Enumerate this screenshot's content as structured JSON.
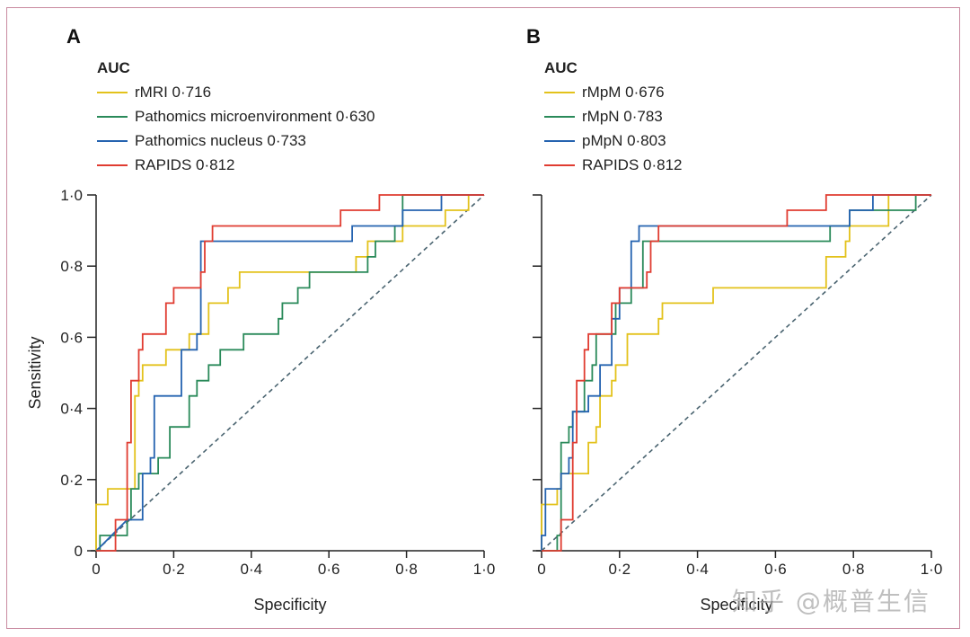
{
  "watermark": "知乎 @概普生信",
  "chart_data": [
    {
      "type": "line",
      "panel": "A",
      "title": "",
      "legend_title": "AUC",
      "legend_placement": "top-left",
      "xlabel": "Specificity",
      "ylabel": "Sensitivity",
      "xlim": [
        0,
        1
      ],
      "ylim": [
        0,
        1
      ],
      "xticks": [
        "0",
        "0·2",
        "0·4",
        "0·6",
        "0·8",
        "1·0"
      ],
      "yticks": [
        "0",
        "0·2",
        "0·4",
        "0·6",
        "0·8",
        "1·0"
      ],
      "grid": false,
      "reference_line": {
        "name": "chance",
        "style": "dashed",
        "color": "#4a6470",
        "points": [
          [
            0,
            0
          ],
          [
            1,
            1
          ]
        ]
      },
      "series": [
        {
          "name": "rMRI",
          "auc": "0·716",
          "label": "rMRI 0·716",
          "color": "#e3c21b",
          "points": [
            [
              0,
              0
            ],
            [
              0,
              0.13
            ],
            [
              0.03,
              0.13
            ],
            [
              0.03,
              0.174
            ],
            [
              0.1,
              0.174
            ],
            [
              0.1,
              0.435
            ],
            [
              0.11,
              0.435
            ],
            [
              0.11,
              0.478
            ],
            [
              0.12,
              0.478
            ],
            [
              0.12,
              0.522
            ],
            [
              0.18,
              0.522
            ],
            [
              0.18,
              0.565
            ],
            [
              0.24,
              0.565
            ],
            [
              0.24,
              0.609
            ],
            [
              0.29,
              0.609
            ],
            [
              0.29,
              0.696
            ],
            [
              0.34,
              0.696
            ],
            [
              0.34,
              0.739
            ],
            [
              0.37,
              0.739
            ],
            [
              0.37,
              0.783
            ],
            [
              0.67,
              0.783
            ],
            [
              0.67,
              0.826
            ],
            [
              0.7,
              0.826
            ],
            [
              0.7,
              0.87
            ],
            [
              0.79,
              0.87
            ],
            [
              0.79,
              0.913
            ],
            [
              0.9,
              0.913
            ],
            [
              0.9,
              0.957
            ],
            [
              0.96,
              0.957
            ],
            [
              0.96,
              1
            ],
            [
              1,
              1
            ]
          ]
        },
        {
          "name": "Pathomics microenvironment",
          "auc": "0·630",
          "label": "Pathomics microenvironment 0·630",
          "color": "#2a8a5a",
          "points": [
            [
              0,
              0
            ],
            [
              0.01,
              0
            ],
            [
              0.01,
              0.043
            ],
            [
              0.08,
              0.043
            ],
            [
              0.08,
              0.087
            ],
            [
              0.09,
              0.087
            ],
            [
              0.09,
              0.174
            ],
            [
              0.11,
              0.174
            ],
            [
              0.11,
              0.217
            ],
            [
              0.16,
              0.217
            ],
            [
              0.16,
              0.261
            ],
            [
              0.19,
              0.261
            ],
            [
              0.19,
              0.348
            ],
            [
              0.24,
              0.348
            ],
            [
              0.24,
              0.435
            ],
            [
              0.26,
              0.435
            ],
            [
              0.26,
              0.478
            ],
            [
              0.29,
              0.478
            ],
            [
              0.29,
              0.522
            ],
            [
              0.32,
              0.522
            ],
            [
              0.32,
              0.565
            ],
            [
              0.38,
              0.565
            ],
            [
              0.38,
              0.609
            ],
            [
              0.47,
              0.609
            ],
            [
              0.47,
              0.652
            ],
            [
              0.48,
              0.652
            ],
            [
              0.48,
              0.696
            ],
            [
              0.52,
              0.696
            ],
            [
              0.52,
              0.739
            ],
            [
              0.55,
              0.739
            ],
            [
              0.55,
              0.783
            ],
            [
              0.7,
              0.783
            ],
            [
              0.7,
              0.826
            ],
            [
              0.72,
              0.826
            ],
            [
              0.72,
              0.87
            ],
            [
              0.77,
              0.87
            ],
            [
              0.77,
              0.913
            ],
            [
              0.79,
              0.913
            ],
            [
              0.79,
              1
            ],
            [
              1,
              1
            ]
          ]
        },
        {
          "name": "Pathomics nucleus",
          "auc": "0·733",
          "label": "Pathomics nucleus 0·733",
          "color": "#2563b0",
          "points": [
            [
              0,
              0
            ],
            [
              0.01,
              0.01
            ],
            [
              0.08,
              0.087
            ],
            [
              0.12,
              0.087
            ],
            [
              0.12,
              0.217
            ],
            [
              0.14,
              0.217
            ],
            [
              0.14,
              0.261
            ],
            [
              0.15,
              0.261
            ],
            [
              0.15,
              0.435
            ],
            [
              0.22,
              0.435
            ],
            [
              0.22,
              0.565
            ],
            [
              0.26,
              0.565
            ],
            [
              0.26,
              0.609
            ],
            [
              0.27,
              0.609
            ],
            [
              0.27,
              0.87
            ],
            [
              0.66,
              0.87
            ],
            [
              0.66,
              0.913
            ],
            [
              0.79,
              0.913
            ],
            [
              0.79,
              0.957
            ],
            [
              0.89,
              0.957
            ],
            [
              0.89,
              1
            ],
            [
              1,
              1
            ]
          ]
        },
        {
          "name": "RAPIDS",
          "auc": "0·812",
          "label": "RAPIDS 0·812",
          "color": "#e03c31",
          "points": [
            [
              0,
              0
            ],
            [
              0.05,
              0
            ],
            [
              0.05,
              0.087
            ],
            [
              0.08,
              0.087
            ],
            [
              0.08,
              0.304
            ],
            [
              0.09,
              0.304
            ],
            [
              0.09,
              0.478
            ],
            [
              0.11,
              0.478
            ],
            [
              0.11,
              0.565
            ],
            [
              0.12,
              0.565
            ],
            [
              0.12,
              0.609
            ],
            [
              0.18,
              0.609
            ],
            [
              0.18,
              0.696
            ],
            [
              0.2,
              0.696
            ],
            [
              0.2,
              0.739
            ],
            [
              0.27,
              0.739
            ],
            [
              0.27,
              0.783
            ],
            [
              0.28,
              0.783
            ],
            [
              0.28,
              0.87
            ],
            [
              0.3,
              0.87
            ],
            [
              0.3,
              0.913
            ],
            [
              0.63,
              0.913
            ],
            [
              0.63,
              0.957
            ],
            [
              0.73,
              0.957
            ],
            [
              0.73,
              1
            ],
            [
              1,
              1
            ]
          ]
        }
      ]
    },
    {
      "type": "line",
      "panel": "B",
      "title": "",
      "legend_title": "AUC",
      "legend_placement": "top-left",
      "xlabel": "Specificity",
      "ylabel": "",
      "xlim": [
        0,
        1
      ],
      "ylim": [
        0,
        1
      ],
      "xticks": [
        "0",
        "0·2",
        "0·4",
        "0·6",
        "0·8",
        "1·0"
      ],
      "yticks": [],
      "grid": false,
      "reference_line": {
        "name": "chance",
        "style": "dashed",
        "color": "#4a6470",
        "points": [
          [
            0,
            0
          ],
          [
            1,
            1
          ]
        ]
      },
      "series": [
        {
          "name": "rMpM",
          "auc": "0·676",
          "label": "rMpM 0·676",
          "color": "#e3c21b",
          "points": [
            [
              0,
              0
            ],
            [
              0,
              0.13
            ],
            [
              0.04,
              0.13
            ],
            [
              0.04,
              0.174
            ],
            [
              0.05,
              0.174
            ],
            [
              0.05,
              0.217
            ],
            [
              0.12,
              0.217
            ],
            [
              0.12,
              0.304
            ],
            [
              0.14,
              0.304
            ],
            [
              0.14,
              0.348
            ],
            [
              0.15,
              0.348
            ],
            [
              0.15,
              0.435
            ],
            [
              0.18,
              0.435
            ],
            [
              0.18,
              0.478
            ],
            [
              0.19,
              0.478
            ],
            [
              0.19,
              0.522
            ],
            [
              0.22,
              0.522
            ],
            [
              0.22,
              0.609
            ],
            [
              0.3,
              0.609
            ],
            [
              0.3,
              0.652
            ],
            [
              0.31,
              0.652
            ],
            [
              0.31,
              0.696
            ],
            [
              0.44,
              0.696
            ],
            [
              0.44,
              0.739
            ],
            [
              0.73,
              0.739
            ],
            [
              0.73,
              0.826
            ],
            [
              0.78,
              0.826
            ],
            [
              0.78,
              0.87
            ],
            [
              0.79,
              0.87
            ],
            [
              0.79,
              0.913
            ],
            [
              0.89,
              0.913
            ],
            [
              0.89,
              1
            ],
            [
              1,
              1
            ]
          ]
        },
        {
          "name": "rMpN",
          "auc": "0·783",
          "label": "rMpN 0·783",
          "color": "#2a8a5a",
          "points": [
            [
              0,
              0
            ],
            [
              0.04,
              0
            ],
            [
              0.04,
              0.043
            ],
            [
              0.05,
              0.043
            ],
            [
              0.05,
              0.304
            ],
            [
              0.07,
              0.304
            ],
            [
              0.07,
              0.348
            ],
            [
              0.08,
              0.348
            ],
            [
              0.08,
              0.391
            ],
            [
              0.11,
              0.391
            ],
            [
              0.11,
              0.478
            ],
            [
              0.13,
              0.478
            ],
            [
              0.13,
              0.522
            ],
            [
              0.14,
              0.522
            ],
            [
              0.14,
              0.609
            ],
            [
              0.19,
              0.609
            ],
            [
              0.19,
              0.696
            ],
            [
              0.23,
              0.696
            ],
            [
              0.23,
              0.739
            ],
            [
              0.26,
              0.739
            ],
            [
              0.26,
              0.87
            ],
            [
              0.74,
              0.87
            ],
            [
              0.74,
              0.913
            ],
            [
              0.79,
              0.913
            ],
            [
              0.79,
              0.957
            ],
            [
              0.96,
              0.957
            ],
            [
              0.96,
              1
            ],
            [
              1,
              1
            ]
          ]
        },
        {
          "name": "pMpN",
          "auc": "0·803",
          "label": "pMpN 0·803",
          "color": "#2563b0",
          "points": [
            [
              0,
              0
            ],
            [
              0,
              0.043
            ],
            [
              0.01,
              0.043
            ],
            [
              0.01,
              0.174
            ],
            [
              0.05,
              0.174
            ],
            [
              0.05,
              0.217
            ],
            [
              0.07,
              0.217
            ],
            [
              0.07,
              0.261
            ],
            [
              0.08,
              0.261
            ],
            [
              0.08,
              0.391
            ],
            [
              0.12,
              0.391
            ],
            [
              0.12,
              0.435
            ],
            [
              0.15,
              0.435
            ],
            [
              0.15,
              0.522
            ],
            [
              0.18,
              0.522
            ],
            [
              0.18,
              0.652
            ],
            [
              0.2,
              0.652
            ],
            [
              0.2,
              0.739
            ],
            [
              0.23,
              0.739
            ],
            [
              0.23,
              0.87
            ],
            [
              0.25,
              0.87
            ],
            [
              0.25,
              0.913
            ],
            [
              0.63,
              0.913
            ],
            [
              0.79,
              0.913
            ],
            [
              0.79,
              0.957
            ],
            [
              0.85,
              0.957
            ],
            [
              0.85,
              1
            ],
            [
              1,
              1
            ]
          ]
        },
        {
          "name": "RAPIDS",
          "auc": "0·812",
          "label": "RAPIDS 0·812",
          "color": "#e03c31",
          "points": [
            [
              0,
              0
            ],
            [
              0.05,
              0
            ],
            [
              0.05,
              0.087
            ],
            [
              0.08,
              0.087
            ],
            [
              0.08,
              0.304
            ],
            [
              0.09,
              0.304
            ],
            [
              0.09,
              0.478
            ],
            [
              0.11,
              0.478
            ],
            [
              0.11,
              0.565
            ],
            [
              0.12,
              0.565
            ],
            [
              0.12,
              0.609
            ],
            [
              0.18,
              0.609
            ],
            [
              0.18,
              0.696
            ],
            [
              0.2,
              0.696
            ],
            [
              0.2,
              0.739
            ],
            [
              0.27,
              0.739
            ],
            [
              0.27,
              0.783
            ],
            [
              0.28,
              0.783
            ],
            [
              0.28,
              0.87
            ],
            [
              0.3,
              0.87
            ],
            [
              0.3,
              0.913
            ],
            [
              0.63,
              0.913
            ],
            [
              0.63,
              0.957
            ],
            [
              0.73,
              0.957
            ],
            [
              0.73,
              1
            ],
            [
              1,
              1
            ]
          ]
        }
      ]
    }
  ]
}
